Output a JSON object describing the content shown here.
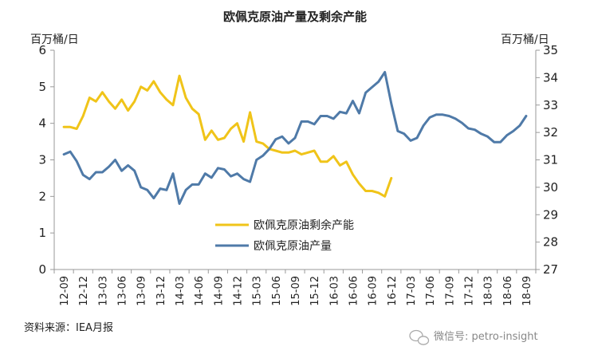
{
  "chart_data": {
    "type": "line",
    "title": "欧佩克原油产量及剩余产能",
    "ylabel_left": "百万桶/日",
    "ylabel_right": "百万桶/日",
    "ylim_left": [
      0,
      6
    ],
    "ylim_right": [
      27,
      35
    ],
    "yticks_left": [
      "0",
      "1",
      "2",
      "3",
      "4",
      "5",
      "6"
    ],
    "yticks_right": [
      "27",
      "28",
      "29",
      "30",
      "31",
      "32",
      "33",
      "34",
      "35"
    ],
    "x_categories": [
      "12-09",
      "12-12",
      "13-03",
      "13-06",
      "13-09",
      "13-12",
      "14-03",
      "14-06",
      "14-09",
      "14-12",
      "15-03",
      "15-06",
      "15-09",
      "15-12",
      "16-03",
      "16-06",
      "16-09",
      "16-12",
      "17-03",
      "17-06",
      "17-09",
      "17-12",
      "18-03",
      "18-06",
      "18-09"
    ],
    "legend": {
      "placement": "center-right"
    },
    "series": [
      {
        "name": "欧佩克原油剩余产能",
        "axis": "left",
        "color": "#f0c419",
        "x": [
          0,
          1,
          2,
          3,
          4,
          5,
          6,
          7,
          8,
          9,
          10,
          11,
          12,
          13,
          14,
          15,
          16,
          17,
          18,
          19,
          20,
          21,
          22,
          23,
          24,
          25,
          26,
          27,
          28,
          29,
          30,
          31,
          32,
          33,
          34,
          35,
          36,
          37,
          38,
          39,
          40,
          41,
          42,
          43,
          44,
          45,
          46,
          47,
          48,
          49,
          50,
          51
        ],
        "values": [
          3.9,
          3.9,
          3.85,
          4.2,
          4.7,
          4.6,
          4.85,
          4.6,
          4.4,
          4.65,
          4.35,
          4.6,
          5.0,
          4.9,
          5.15,
          4.85,
          4.65,
          4.5,
          5.3,
          4.7,
          4.4,
          4.25,
          3.55,
          3.8,
          3.55,
          3.6,
          3.85,
          4.0,
          3.5,
          4.3,
          3.5,
          3.45,
          3.3,
          3.25,
          3.2,
          3.2,
          3.25,
          3.15,
          3.2,
          3.25,
          2.95,
          2.95,
          3.1,
          2.85,
          2.95,
          2.6,
          2.35,
          2.15,
          2.15,
          2.1,
          2.0,
          2.5
        ]
      },
      {
        "name": "欧佩克原油产量",
        "axis": "right",
        "color": "#4f7aa8",
        "x": [
          0,
          1,
          2,
          3,
          4,
          5,
          6,
          7,
          8,
          9,
          10,
          11,
          12,
          13,
          14,
          15,
          16,
          17,
          18,
          19,
          20,
          21,
          22,
          23,
          24,
          25,
          26,
          27,
          28,
          29,
          30,
          31,
          32,
          33,
          34,
          35,
          36,
          37,
          38,
          39,
          40,
          41,
          42,
          43,
          44,
          45,
          46,
          47,
          48,
          49,
          50,
          51,
          52,
          53,
          54,
          55,
          56,
          57,
          58,
          59,
          60,
          61,
          62,
          63,
          64,
          65,
          66,
          67,
          68,
          69,
          70,
          71,
          72
        ],
        "values": [
          31.2,
          31.3,
          30.95,
          30.45,
          30.3,
          30.55,
          30.55,
          30.75,
          31.0,
          30.6,
          30.8,
          30.6,
          30.0,
          29.9,
          29.6,
          29.95,
          29.9,
          30.5,
          29.4,
          29.9,
          30.1,
          30.1,
          30.5,
          30.35,
          30.7,
          30.65,
          30.4,
          30.5,
          30.3,
          30.2,
          31.0,
          31.15,
          31.4,
          31.75,
          31.85,
          31.6,
          31.8,
          32.4,
          32.4,
          32.3,
          32.6,
          32.6,
          32.5,
          32.75,
          32.7,
          33.15,
          32.7,
          33.45,
          33.65,
          33.85,
          34.2,
          33.05,
          32.05,
          31.95,
          31.7,
          31.8,
          32.25,
          32.55,
          32.65,
          32.65,
          32.6,
          32.5,
          32.35,
          32.15,
          32.1,
          31.95,
          31.85,
          31.65,
          31.65,
          31.9,
          32.05,
          32.25,
          32.6
        ]
      }
    ]
  },
  "footer": {
    "source": "资料来源：IEA月报",
    "watermark": "微信号: petro-insight"
  },
  "colors": {
    "axis": "#999999",
    "text": "#222222"
  }
}
